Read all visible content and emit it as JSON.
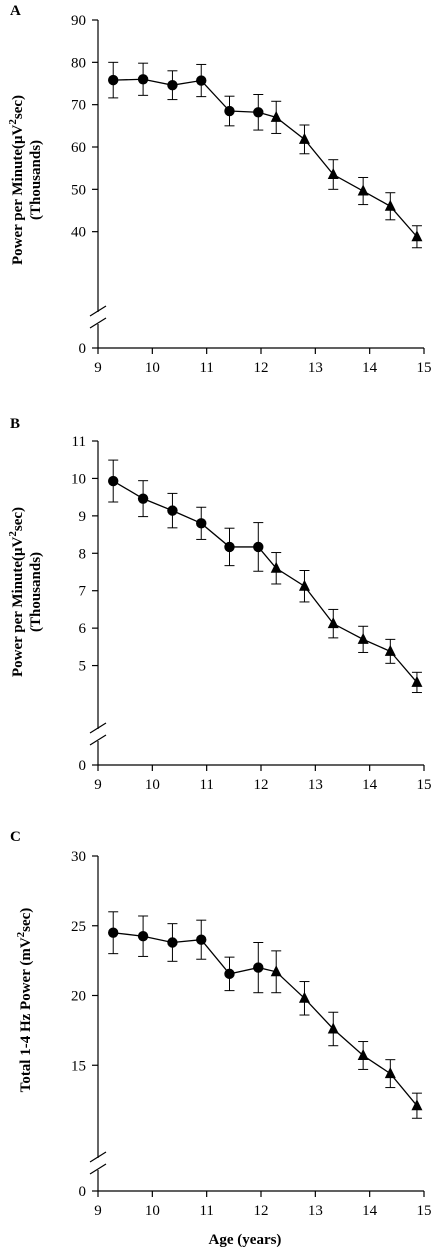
{
  "chart_data": [
    {
      "panel_label": "A",
      "type": "line",
      "ylabel_main": "Power per Minute(μV",
      "ylabel_sup": "2",
      "ylabel_tail": "sec)",
      "ylabel_line2": "(Thousands)",
      "xlabel": "",
      "xlim": [
        9,
        15
      ],
      "x_ticks": [
        "9",
        "10",
        "11",
        "12",
        "13",
        "14",
        "15"
      ],
      "ylim": [
        30,
        90
      ],
      "y_ticks": [
        "40",
        "50",
        "60",
        "70",
        "80",
        "90"
      ],
      "y_zero_label": "0",
      "axis_break": true,
      "series": [
        {
          "marker": "circle",
          "x": [
            9.28,
            9.83,
            10.37,
            10.9,
            11.42,
            11.95
          ],
          "y": [
            75.8,
            76.0,
            74.6,
            75.7,
            68.5,
            68.2
          ],
          "err": [
            4.2,
            3.8,
            3.4,
            3.8,
            3.5,
            4.2
          ]
        },
        {
          "marker": "triangle",
          "x": [
            12.28,
            12.8,
            13.33,
            13.88,
            14.38,
            14.87
          ],
          "y": [
            67.0,
            61.8,
            53.5,
            49.6,
            46.0,
            38.8
          ],
          "err": [
            3.8,
            3.4,
            3.5,
            3.2,
            3.2,
            2.6
          ]
        }
      ]
    },
    {
      "panel_label": "B",
      "type": "line",
      "ylabel_main": "Power per Minute(μV",
      "ylabel_sup": "2",
      "ylabel_tail": "sec)",
      "ylabel_line2": "(Thousands)",
      "xlabel": "",
      "xlim": [
        9,
        15
      ],
      "x_ticks": [
        "9",
        "10",
        "11",
        "12",
        "13",
        "14",
        "15"
      ],
      "ylim": [
        4,
        11
      ],
      "y_ticks": [
        "5",
        "6",
        "7",
        "8",
        "9",
        "10",
        "11"
      ],
      "y_zero_label": "0",
      "axis_break": true,
      "series": [
        {
          "marker": "circle",
          "x": [
            9.28,
            9.83,
            10.37,
            10.9,
            11.42,
            11.95
          ],
          "y": [
            9.93,
            9.46,
            9.14,
            8.8,
            8.17,
            8.17
          ],
          "err": [
            0.56,
            0.48,
            0.46,
            0.43,
            0.5,
            0.65
          ]
        },
        {
          "marker": "triangle",
          "x": [
            12.28,
            12.8,
            13.33,
            13.88,
            14.38,
            14.87
          ],
          "y": [
            7.6,
            7.12,
            6.12,
            5.7,
            5.38,
            4.55
          ],
          "err": [
            0.42,
            0.42,
            0.38,
            0.35,
            0.32,
            0.27
          ]
        }
      ]
    },
    {
      "panel_label": "C",
      "type": "line",
      "ylabel_main": "Total 1-4 Hz Power (mV",
      "ylabel_sup": "2",
      "ylabel_tail": "sec)",
      "ylabel_line2": "",
      "xlabel": "Age (years)",
      "xlim": [
        9,
        15
      ],
      "x_ticks": [
        "9",
        "10",
        "11",
        "12",
        "13",
        "14",
        "15"
      ],
      "ylim": [
        10,
        30
      ],
      "y_ticks": [
        "15",
        "20",
        "25",
        "30"
      ],
      "y_zero_label": "0",
      "axis_break": true,
      "series": [
        {
          "marker": "circle",
          "x": [
            9.28,
            9.83,
            10.37,
            10.9,
            11.42,
            11.95
          ],
          "y": [
            24.5,
            24.25,
            23.8,
            24.0,
            21.55,
            22.0
          ],
          "err": [
            1.5,
            1.45,
            1.35,
            1.4,
            1.2,
            1.8
          ]
        },
        {
          "marker": "triangle",
          "x": [
            12.28,
            12.8,
            13.33,
            13.88,
            14.38,
            14.87
          ],
          "y": [
            21.7,
            19.8,
            17.6,
            15.7,
            14.4,
            12.1
          ],
          "err": [
            1.5,
            1.2,
            1.2,
            1.0,
            1.0,
            0.9
          ]
        }
      ]
    }
  ]
}
